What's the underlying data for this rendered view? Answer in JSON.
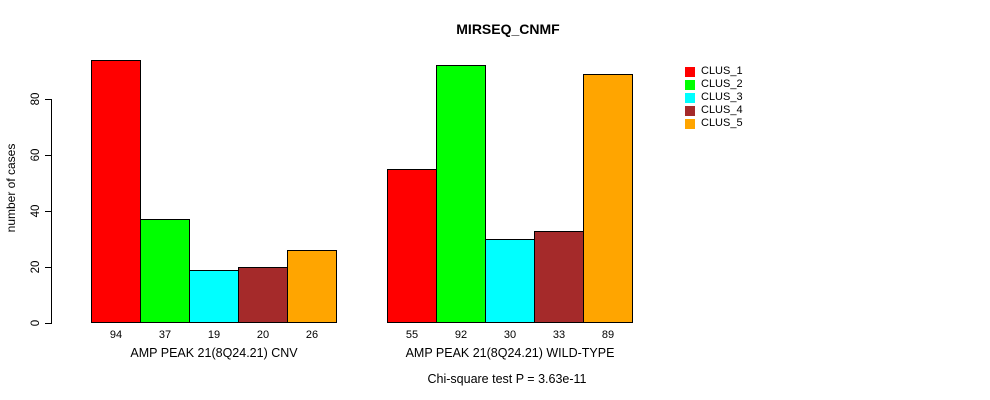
{
  "chart_data": {
    "type": "bar",
    "title": "MIRSEQ_CNMF",
    "ylabel": "number of cases",
    "xlabel": "",
    "ylim": [
      0,
      95
    ],
    "yticks": [
      0,
      20,
      40,
      60,
      80
    ],
    "grid": false,
    "show_values": true,
    "legend_position": "right",
    "categories": [
      "AMP PEAK 21(8Q24.21) CNV",
      "AMP PEAK 21(8Q24.21) WILD-TYPE"
    ],
    "series": [
      {
        "name": "CLUS_1",
        "color": "#FF0000",
        "values": [
          94,
          55
        ]
      },
      {
        "name": "CLUS_2",
        "color": "#00FF00",
        "values": [
          37,
          92
        ]
      },
      {
        "name": "CLUS_3",
        "color": "#00FFFF",
        "values": [
          19,
          30
        ]
      },
      {
        "name": "CLUS_4",
        "color": "#A52A2A",
        "values": [
          20,
          33
        ]
      },
      {
        "name": "CLUS_5",
        "color": "#FFA500",
        "values": [
          26,
          89
        ]
      }
    ],
    "footnote": "Chi-square test P = 3.63e-11"
  }
}
